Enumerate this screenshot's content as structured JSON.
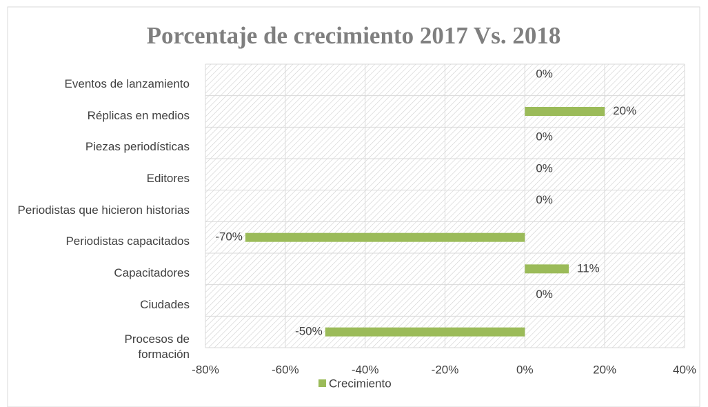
{
  "chart_data": {
    "type": "bar",
    "orientation": "horizontal",
    "title": "Porcentaje de crecimiento 2017 Vs. 2018",
    "categories": [
      "Eventos de lanzamiento",
      "Réplicas en medios",
      "Piezas periodísticas",
      "Editores",
      "Periodistas que hicieron historias",
      "Periodistas capacitados",
      "Capacitadores",
      "Ciudades",
      "Procesos de formación"
    ],
    "series": [
      {
        "name": "Crecimiento",
        "color": "#9bbb59",
        "values": [
          0,
          20,
          0,
          0,
          0,
          -70,
          11,
          0,
          -50
        ],
        "value_labels": [
          "0%",
          "20%",
          "0%",
          "0%",
          "0%",
          "-70%",
          "11%",
          "0%",
          "-50%"
        ]
      }
    ],
    "xlim": [
      -80,
      40
    ],
    "xticks": [
      {
        "value": -80,
        "label": "-80%"
      },
      {
        "value": -60,
        "label": "-60%"
      },
      {
        "value": -40,
        "label": "-40%"
      },
      {
        "value": -20,
        "label": "-20%"
      },
      {
        "value": 0,
        "label": "0%"
      },
      {
        "value": 20,
        "label": "20%"
      },
      {
        "value": 40,
        "label": "40%"
      }
    ],
    "grid": true,
    "legend": "bottom"
  }
}
